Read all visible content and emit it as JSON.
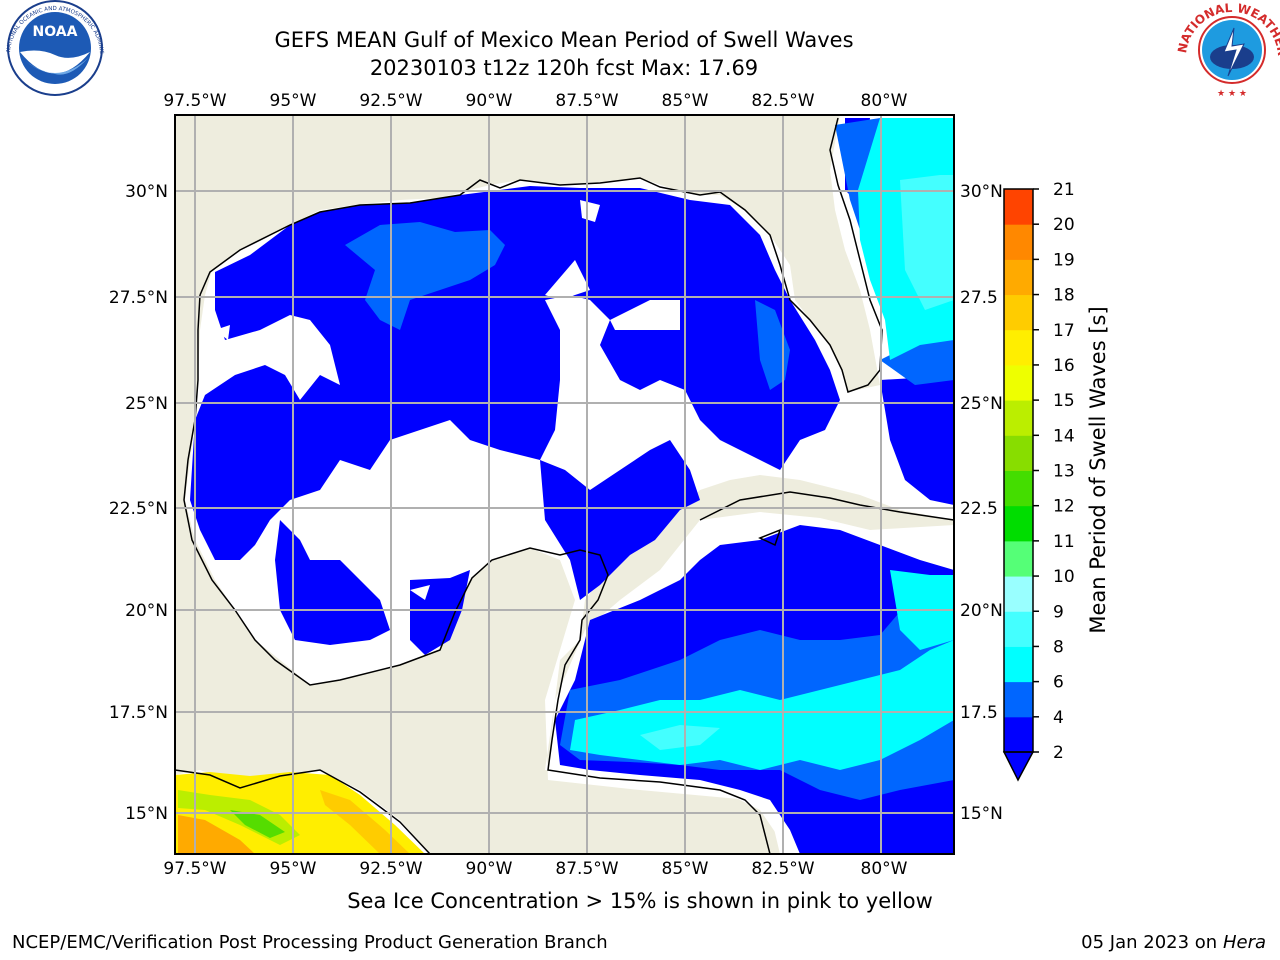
{
  "header": {
    "title_line1": "GEFS MEAN Gulf of Mexico Mean Period of Swell Waves",
    "title_line2": "20230103 t12z 120h fcst   Max: 17.69"
  },
  "logos": {
    "left": "NOAA",
    "left_ring": "NATIONAL OCEANIC AND ATMOSPHERIC ADMINISTRATION · U.S. DEPARTMENT OF COMMERCE",
    "right_ring": "NATIONAL WEATHER SERVICE"
  },
  "map": {
    "lon_labels": [
      "97.5°W",
      "95°W",
      "92.5°W",
      "90°W",
      "87.5°W",
      "85°W",
      "82.5°W",
      "80°W"
    ],
    "lat_labels_left": [
      "30°N",
      "27.5°N",
      "25°N",
      "22.5°N",
      "20°N",
      "17.5°N",
      "15°N"
    ],
    "lat_labels_right": [
      "30°N",
      "27.5",
      "25°N",
      "22.5",
      "20°N",
      "17.5",
      "15°N"
    ],
    "colors": {
      "land": "#eeedde",
      "ocean_white": "#ffffff",
      "gridline": "#b0b0b0"
    }
  },
  "colorbar": {
    "label": "Mean Period of Swell Waves [s]",
    "ticks": [
      "2",
      "4",
      "6",
      "8",
      "9",
      "10",
      "11",
      "12",
      "13",
      "14",
      "15",
      "16",
      "17",
      "18",
      "19",
      "20",
      "21"
    ],
    "colors": [
      "#0000ff",
      "#0066ff",
      "#00ffff",
      "#44ffff",
      "#99ffff",
      "#55ff77",
      "#00dd00",
      "#44dd00",
      "#88dd00",
      "#bbee00",
      "#eeff00",
      "#ffee00",
      "#ffcc00",
      "#ffaa00",
      "#ff8800",
      "#ff4400",
      "#ff0000"
    ]
  },
  "footnote": "Sea Ice Concentration > 15% is shown in pink to yellow",
  "footer": {
    "left": "NCEP/EMC/Verification Post Processing Product Generation Branch",
    "date": "05 Jan 2023 on",
    "host": "Hera"
  }
}
